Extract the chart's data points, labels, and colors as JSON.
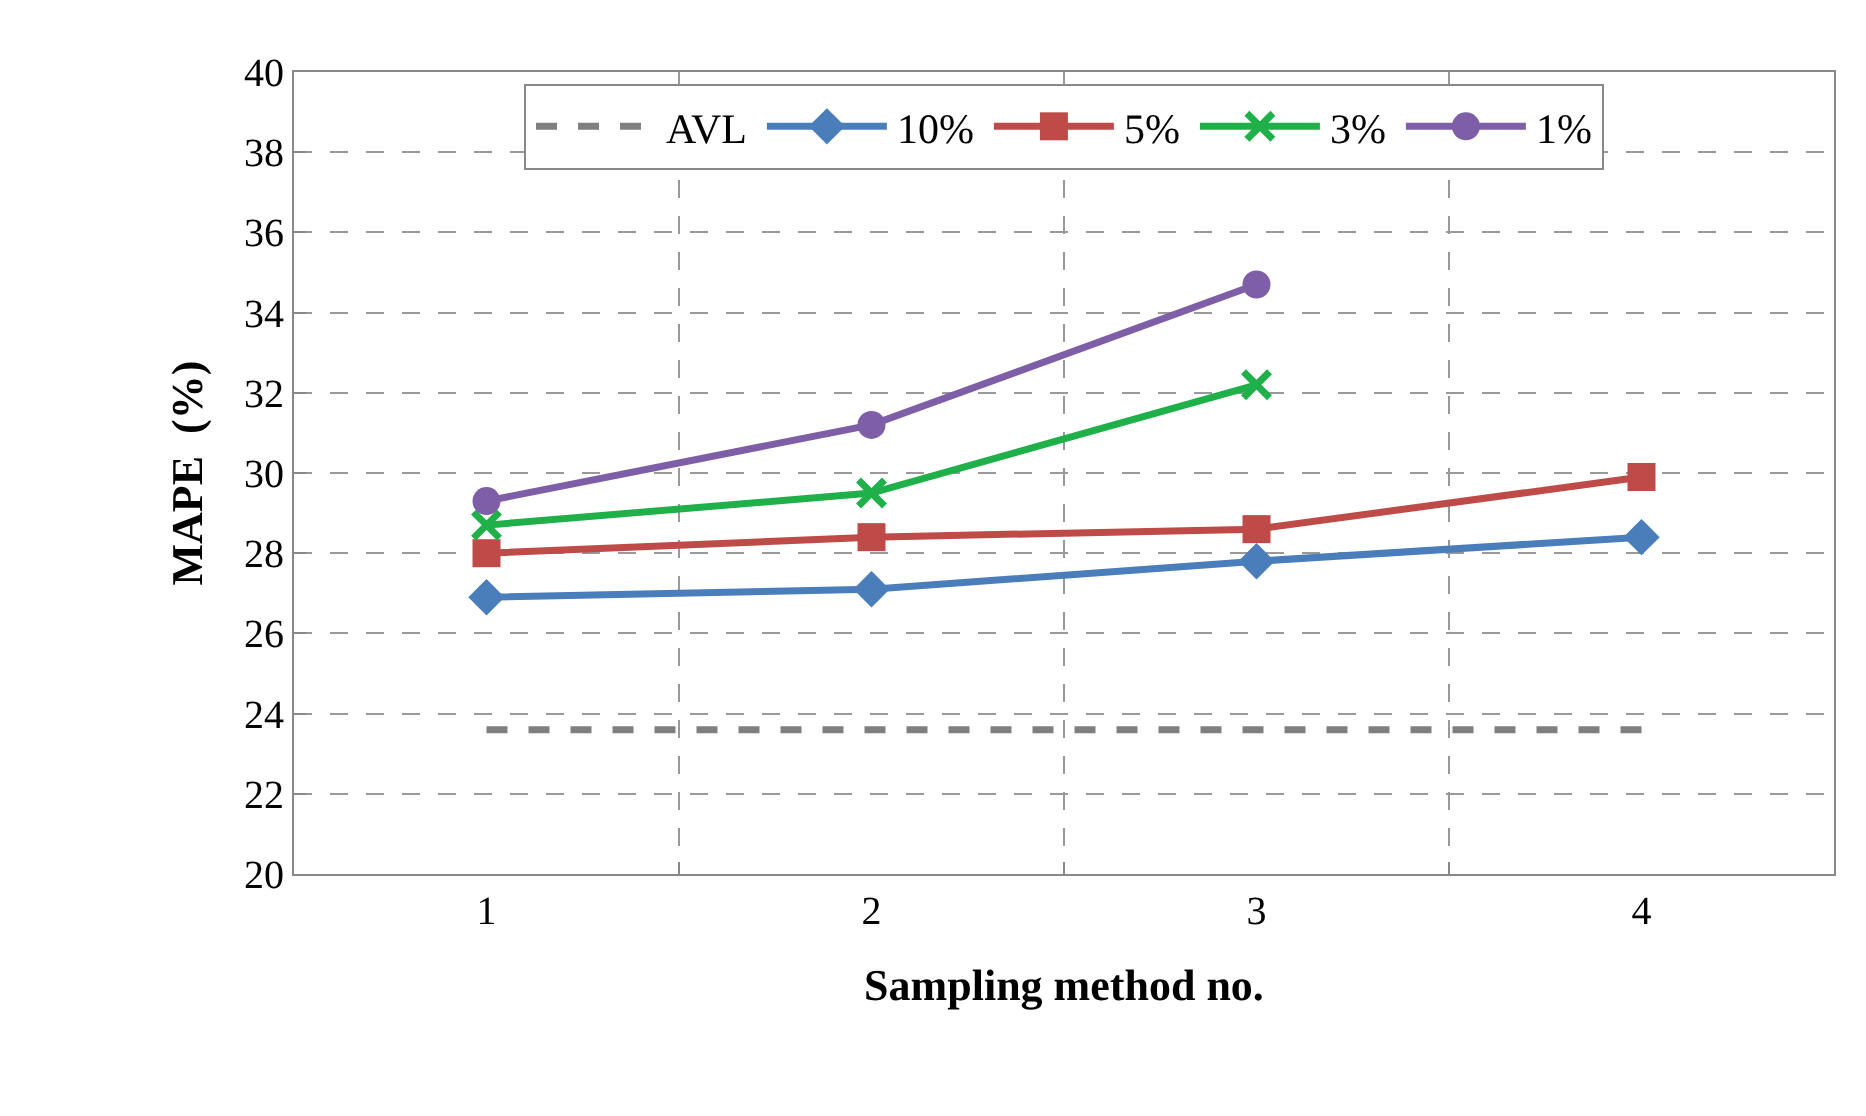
{
  "chart_data": {
    "type": "line",
    "xlabel": "Sampling method no.",
    "ylabel": "MAPE  (%)",
    "categories": [
      "1",
      "2",
      "3",
      "4"
    ],
    "series": [
      {
        "name": "AVL",
        "color": "#7f7f7f",
        "values": [
          23.6,
          23.6,
          23.6,
          23.6
        ],
        "marker": "none",
        "line_style": "dashed"
      },
      {
        "name": "10%",
        "color": "#4a7ebb",
        "values": [
          26.9,
          27.1,
          27.8,
          28.4
        ],
        "marker": "diamond",
        "line_style": "solid"
      },
      {
        "name": "5%",
        "color": "#be4b48",
        "values": [
          28.0,
          28.4,
          28.6,
          29.9
        ],
        "marker": "square",
        "line_style": "solid"
      },
      {
        "name": "3%",
        "color": "#1fb04a",
        "values": [
          28.7,
          29.5,
          32.2,
          null
        ],
        "marker": "cross",
        "line_style": "solid"
      },
      {
        "name": "1%",
        "color": "#7e5ea6",
        "values": [
          29.3,
          31.2,
          34.7,
          null
        ],
        "marker": "circle",
        "line_style": "solid"
      }
    ],
    "ylim": [
      20,
      40
    ],
    "yticks": [
      20,
      22,
      24,
      26,
      28,
      30,
      32,
      34,
      36,
      38,
      40
    ],
    "grid": true,
    "legend": "top"
  }
}
